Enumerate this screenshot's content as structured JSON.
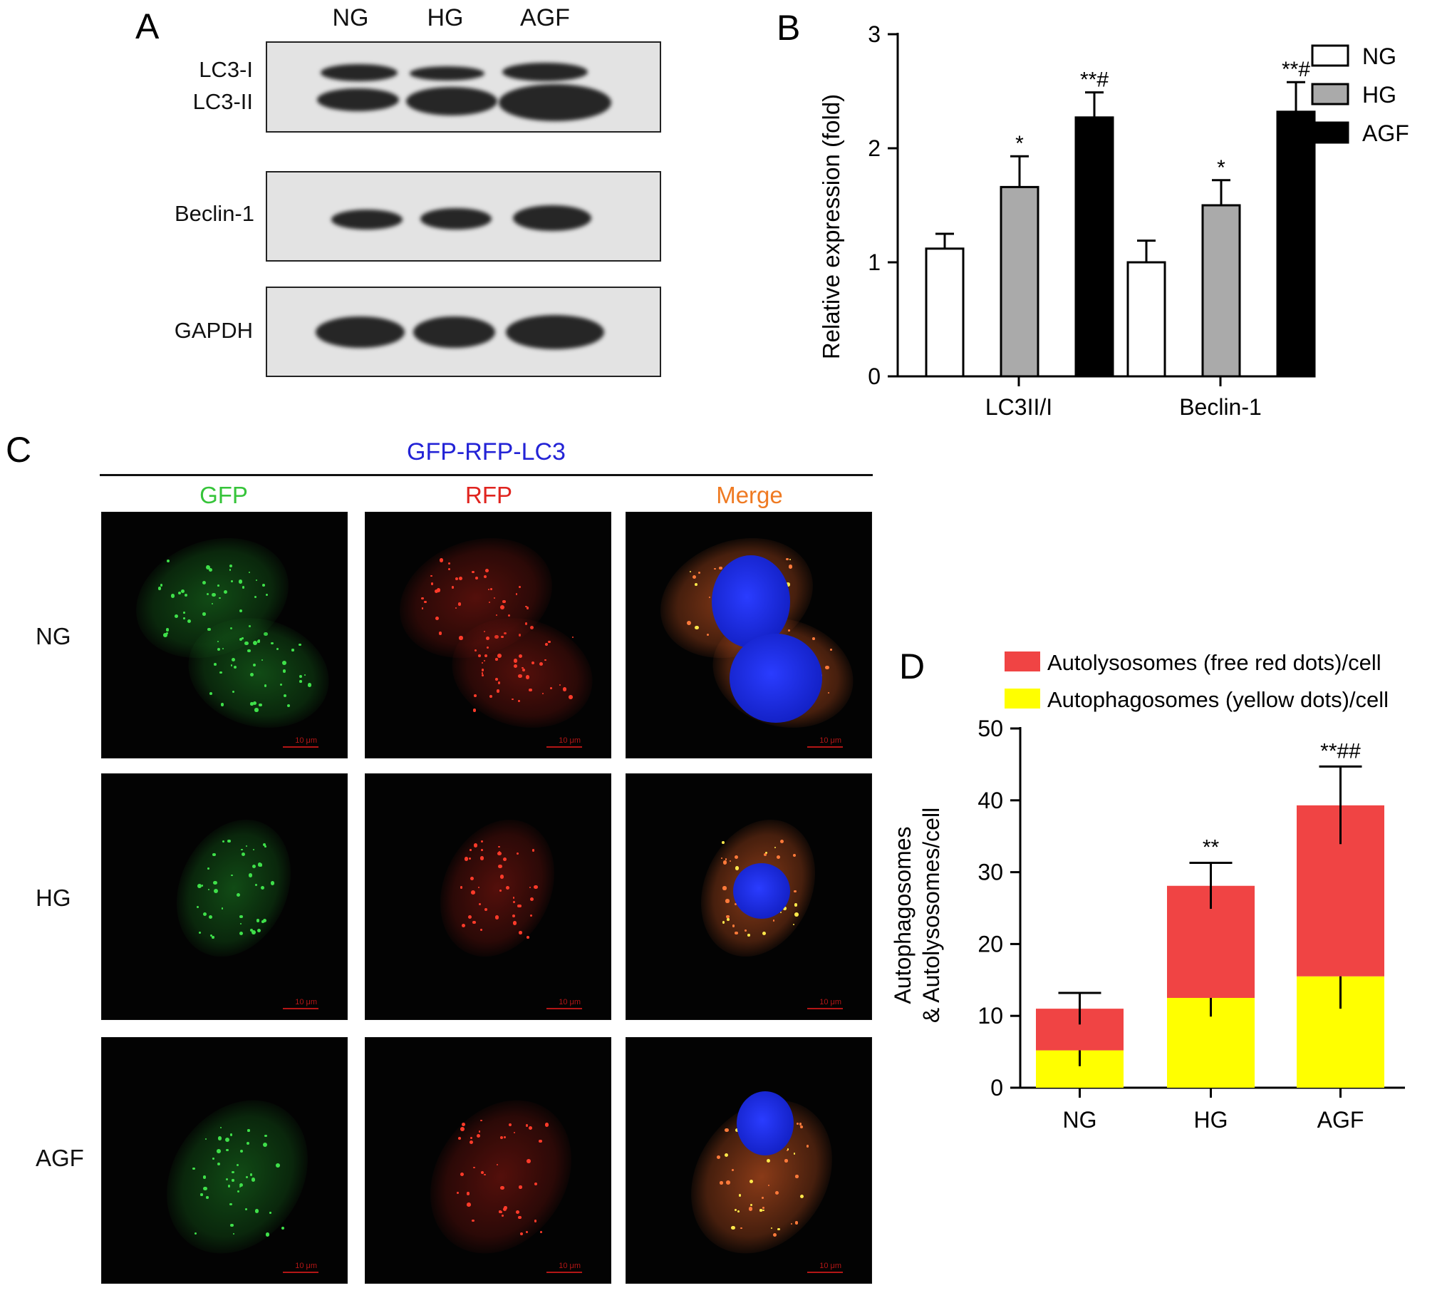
{
  "panelA": {
    "label": "A",
    "lanes": [
      "NG",
      "HG",
      "AGF"
    ],
    "blots": [
      {
        "labels": [
          "LC3-I",
          "LC3-II"
        ]
      },
      {
        "labels": [
          "Beclin-1"
        ]
      },
      {
        "labels": [
          "GAPDH"
        ]
      }
    ]
  },
  "panelC": {
    "label": "C",
    "header": "GFP-RFP-LC3",
    "columns": [
      "GFP",
      "RFP",
      "Merge"
    ],
    "column_colors": [
      "#36c43a",
      "#e0241f",
      "#ef7a22"
    ],
    "header_color": "#2323d6",
    "rows": [
      "NG",
      "HG",
      "AGF"
    ],
    "scale_bar": "10 μm"
  },
  "chart_data": [
    {
      "panel": "B",
      "type": "bar",
      "ylabel": "Relative expression (fold)",
      "xlabel": "",
      "ylim": [
        0,
        3
      ],
      "yticks": [
        "0",
        "1",
        "2",
        "3"
      ],
      "categories": [
        "LC3II/I",
        "Beclin-1"
      ],
      "legend": {
        "placement": "top-right"
      },
      "series": [
        {
          "name": "NG",
          "color": "#ffffff",
          "values": [
            1.12,
            1.0
          ],
          "errors": [
            0.13,
            0.19
          ],
          "annotations": [
            "",
            ""
          ]
        },
        {
          "name": "HG",
          "color": "#aaaaaa",
          "values": [
            1.66,
            1.5
          ],
          "errors": [
            0.27,
            0.22
          ],
          "annotations": [
            "*",
            "*"
          ]
        },
        {
          "name": "AGF",
          "color": "#000000",
          "values": [
            2.27,
            2.32
          ],
          "errors": [
            0.22,
            0.26
          ],
          "annotations": [
            "**#",
            "**#"
          ]
        }
      ]
    },
    {
      "panel": "D",
      "type": "bar",
      "stacked": true,
      "ylabel_lines": [
        "Autophagosomes",
        "& Autolysosomes/cell"
      ],
      "xlabel": "",
      "ylim": [
        0,
        50
      ],
      "yticks": [
        "0",
        "10",
        "20",
        "30",
        "40",
        "50"
      ],
      "categories": [
        "NG",
        "HG",
        "AGF"
      ],
      "legend": {
        "placement": "top-right"
      },
      "series": [
        {
          "name": "Autophagosomes (yellow dots)/cell",
          "color": "#ffff00",
          "values": [
            5.2,
            12.5,
            15.5
          ],
          "errors": [
            2.2,
            2.6,
            4.5
          ],
          "annotations": [
            "",
            "**",
            "** #"
          ]
        },
        {
          "name": "Autolysosomes (free red dots)/cell",
          "color": "#f04444",
          "values": [
            5.8,
            15.6,
            23.8
          ],
          "errors": [
            2.2,
            3.2,
            5.4
          ],
          "annotations": [
            "",
            "**",
            "**##"
          ]
        }
      ],
      "totals": [
        11.0,
        28.1,
        39.3
      ]
    }
  ]
}
